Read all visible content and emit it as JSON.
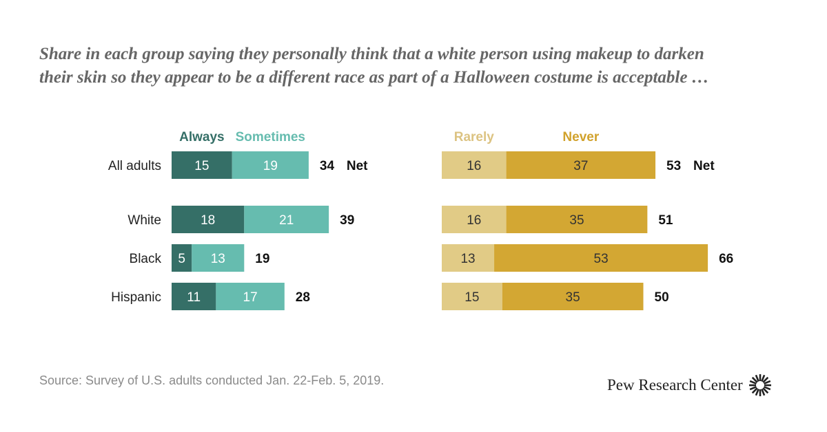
{
  "title_lines": [
    "Share in each group saying they personally think that a white person using makeup to darken",
    "their skin so they appear to be a different race as part of a Halloween costume is acceptable …"
  ],
  "source": "Source: Survey of U.S. adults conducted Jan. 22-Feb. 5, 2019.",
  "logo_text": "Pew Research Center",
  "colors": {
    "always": "#356f67",
    "sometimes": "#66bcaf",
    "rarely": "#e1cb86",
    "never": "#d3a733",
    "legend_always": "#356f67",
    "legend_sometimes": "#66bcaf",
    "legend_rarely": "#dcc382",
    "legend_never": "#d1a22c"
  },
  "chart_data": {
    "type": "bar",
    "orientation": "horizontal",
    "stacked": true,
    "categories": [
      "All adults",
      "White",
      "Black",
      "Hispanic"
    ],
    "groups": [
      {
        "name": "acceptable",
        "series": [
          {
            "name": "Always",
            "key": "always",
            "values": [
              15,
              18,
              5,
              11
            ]
          },
          {
            "name": "Sometimes",
            "key": "sometimes",
            "values": [
              19,
              21,
              13,
              17
            ]
          }
        ],
        "net": [
          34,
          39,
          19,
          28
        ],
        "net_labels": [
          "34",
          "39",
          "19",
          "28"
        ]
      },
      {
        "name": "not acceptable",
        "series": [
          {
            "name": "Rarely",
            "key": "rarely",
            "values": [
              16,
              16,
              13,
              15
            ]
          },
          {
            "name": "Never",
            "key": "never",
            "values": [
              37,
              35,
              53,
              35
            ]
          }
        ],
        "net": [
          53,
          51,
          66,
          50
        ],
        "net_labels": [
          "53",
          "51",
          "66",
          "50"
        ]
      }
    ],
    "net_suffix": "Net",
    "net_suffix_row": 0
  }
}
